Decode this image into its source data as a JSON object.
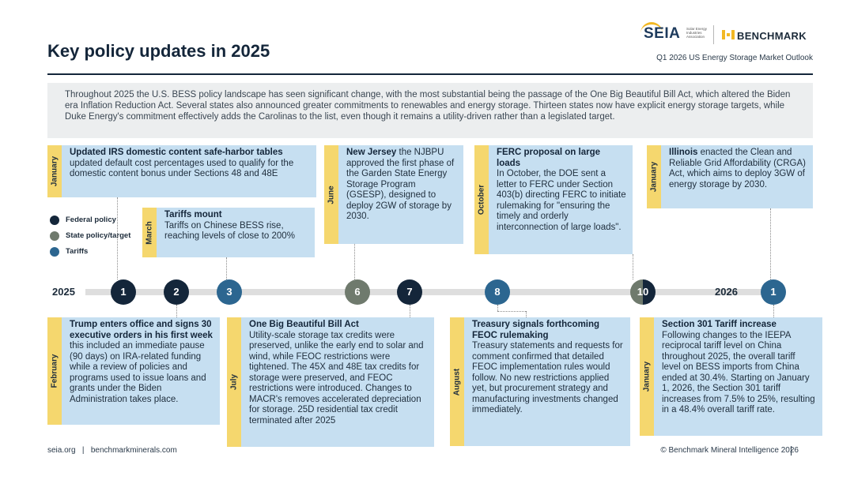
{
  "header": {
    "title": "Key policy updates in 2025",
    "subtitle": "Q1 2026 US Energy Storage Market Outlook",
    "logo_seia": "SEIA",
    "logo_seia_small": "Solar Energy Industries Association",
    "logo_benchmark": "BENCHMARK"
  },
  "intro": "Throughout 2025 the U.S. BESS policy landscape has seen significant change, with the most substantial being the passage of the One Big Beautiful Bill Act, which altered the Biden era Inflation Reduction Act. Several states also announced greater commitments to renewables and energy storage. Thirteen states now have explicit energy storage targets, while Duke Energy's commitment effectively adds the Carolinas to the list, even though it remains a utility-driven rather than a legislated target.",
  "legend": [
    {
      "label": "Federal policy",
      "color": "#14263a"
    },
    {
      "label": "State policy/target",
      "color": "#6f7a6d"
    },
    {
      "label": "Tariffs",
      "color": "#2c6690"
    }
  ],
  "timeline": {
    "start_year": "2025",
    "end_year": "2026",
    "nodes": [
      "1",
      "2",
      "3",
      "6",
      "7",
      "8",
      "10",
      "1"
    ]
  },
  "events": {
    "jan": {
      "month": "January",
      "bold": "Updated IRS domestic content safe-harbor tables",
      "text": "updated default cost percentages used to qualify for the domestic content bonus under Sections 48 and 48E"
    },
    "mar": {
      "month": "March",
      "bold": "Tariffs mount",
      "text": "Tariffs on Chinese BESS rise, reaching levels of close to 200%"
    },
    "jun": {
      "month": "June",
      "bold": "New Jersey",
      "text": "the NJBPU approved the first phase of the Garden State Energy Storage Program (GSESP), designed to deploy 2GW of storage by 2030."
    },
    "oct": {
      "month": "October",
      "bold": "FERC proposal on large loads",
      "text": "In October, the DOE sent a letter to FERC under Section 403(b) directing FERC to initiate rulemaking for \"ensuring the timely and orderly interconnection of large loads\"."
    },
    "jan26": {
      "month": "January",
      "bold": "Illinois",
      "text": "enacted the Clean and Reliable Grid Affordability (CRGA) Act, which aims to deploy 3GW of energy storage by 2030."
    },
    "feb": {
      "month": "February",
      "bold": "Trump enters office and signs 30 executive orders in his first week",
      "text": "this included an immediate pause (90 days) on IRA-related funding while a review of policies and programs used to issue loans and grants under the Biden Administration takes place."
    },
    "jul": {
      "month": "July",
      "bold": "One Big Beautiful Bill Act",
      "text": "Utility-scale storage tax credits were preserved, unlike the early end to solar and wind, while FEOC restrictions were tightened. The 45X and 48E tax credits for storage were preserved, and FEOC restrictions were introduced. Changes to MACR's removes accelerated depreciation for storage. 25D residential tax credit terminated after 2025"
    },
    "aug": {
      "month": "August",
      "bold": "Treasury signals forthcoming FEOC rulemaking",
      "text": "Treasury statements and requests for comment confirmed that detailed FEOC implementation rules would follow. No new restrictions applied yet, but procurement strategy and manufacturing investments changed immediately."
    },
    "jan26b": {
      "month": "January",
      "bold": "Section 301 Tariff increase",
      "text": "Following changes to the IEEPA reciprocal tariff level on China throughout 2025, the overall tariff level on BESS imports from China ended at 30.4%. Starting on January 1, 2026, the Section 301 tariff increases from 7.5% to 25%, resulting in a 48.4% overall tariff rate."
    }
  },
  "footer": {
    "links": "seia.org   |   benchmarkminerals.com",
    "copyright": "© Benchmark Mineral Intelligence 2026"
  }
}
